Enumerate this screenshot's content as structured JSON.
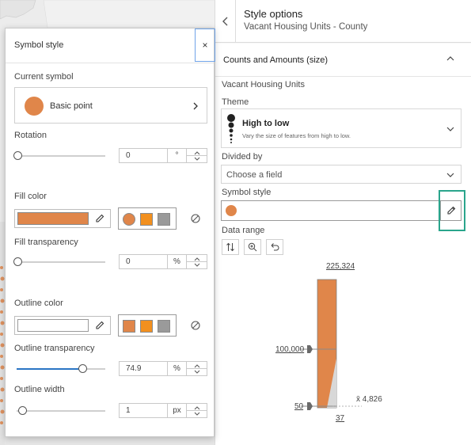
{
  "style_panel": {
    "title": "Style options",
    "subtitle": "Vacant Housing Units - County",
    "section_title": "Counts and Amounts (size)",
    "field_name": "Vacant Housing Units",
    "theme_label": "Theme",
    "theme_title": "High to low",
    "theme_desc": "Vary the size of features from high to low.",
    "divided_by_label": "Divided by",
    "divided_by_placeholder": "Choose a field",
    "symbol_style_label": "Symbol style",
    "data_range_label": "Data range",
    "tool_icons": [
      "swap-icon",
      "zoom-in-icon",
      "undo-icon"
    ]
  },
  "histogram": {
    "max": "225,324",
    "upper_handle": "100,000",
    "lower_handle": "50",
    "min": "37",
    "mean": "x̄ 4,826"
  },
  "symbol_popover": {
    "title": "Symbol style",
    "close_glyph": "×",
    "current_symbol_label": "Current symbol",
    "current_symbol_name": "Basic point",
    "rotation_label": "Rotation",
    "rotation_value": "0",
    "rotation_unit": "°",
    "rotation_fraction": 0,
    "fill_color_label": "Fill color",
    "fill_color": "#e0864a",
    "fill_swatch_colors": [
      "#e0864a",
      "#f2901f",
      "#9a9a9a"
    ],
    "fill_transparency_label": "Fill transparency",
    "fill_transparency_value": "0",
    "fill_transparency_unit": "%",
    "fill_transparency_fraction": 0,
    "outline_color_label": "Outline color",
    "outline_color": "#ffffff",
    "outline_swatch_colors": [
      "#e0864a",
      "#f2901f",
      "#9a9a9a"
    ],
    "outline_transparency_label": "Outline transparency",
    "outline_transparency_value": "74.9",
    "outline_transparency_unit": "%",
    "outline_transparency_fraction": 0.749,
    "outline_width_label": "Outline width",
    "outline_width_value": "1",
    "outline_width_unit": "px"
  },
  "colors": {
    "accent": "#2b75c4",
    "highlight": "#2aa58c",
    "symbol": "#e0864a"
  }
}
